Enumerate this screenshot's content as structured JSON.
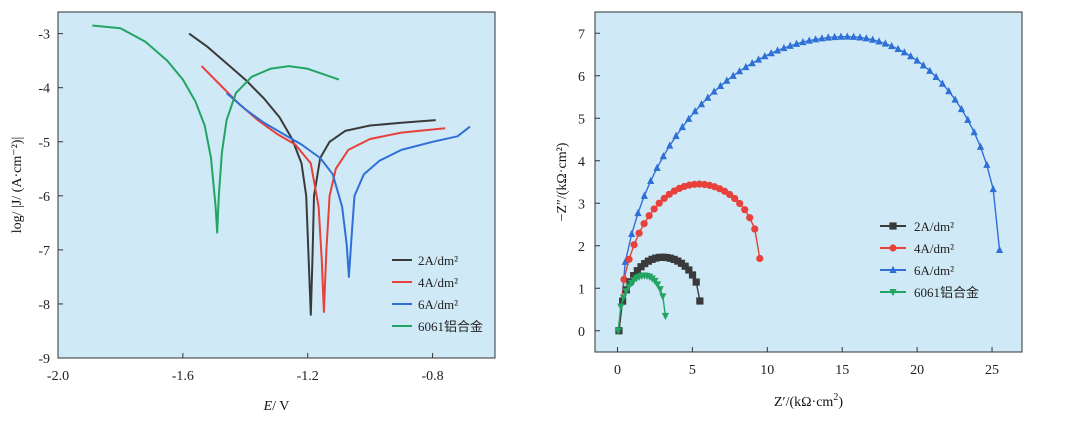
{
  "chart_data": [
    {
      "type": "line",
      "xlabel": "E/ V",
      "xlabel_italic": "E",
      "xlabel_unit": "/ V",
      "ylabel": "log/ |J/ (A·cm⁻²)|",
      "xlim": [
        -2.0,
        -0.6
      ],
      "ylim": [
        -9,
        -2.6
      ],
      "xticks": [
        -2.0,
        -1.6,
        -1.2,
        -0.8
      ],
      "xtick_labels": [
        "-2.0",
        "-1.6",
        "-1.2",
        "-0.8"
      ],
      "yticks": [
        -9,
        -8,
        -7,
        -6,
        -5,
        -4,
        -3
      ],
      "ytick_labels": [
        "-9",
        "-8",
        "-7",
        "-6",
        "-5",
        "-4",
        "-3"
      ],
      "legend_position": "lower-right",
      "background": "#cfe9f7",
      "series": [
        {
          "name": "2A/dm²",
          "color": "#3a3a3a",
          "x": [
            -1.58,
            -1.52,
            -1.46,
            -1.4,
            -1.34,
            -1.29,
            -1.25,
            -1.22,
            -1.205,
            -1.198,
            -1.19,
            -1.185,
            -1.18,
            -1.16,
            -1.13,
            -1.08,
            -1.0,
            -0.9,
            -0.79
          ],
          "y": [
            -3.0,
            -3.25,
            -3.55,
            -3.85,
            -4.2,
            -4.55,
            -4.95,
            -5.4,
            -6.0,
            -7.0,
            -8.2,
            -7.2,
            -6.0,
            -5.3,
            -5.0,
            -4.8,
            -4.7,
            -4.65,
            -4.6
          ]
        },
        {
          "name": "4A/dm²",
          "color": "#e8403a",
          "x": [
            -1.54,
            -1.48,
            -1.42,
            -1.36,
            -1.3,
            -1.24,
            -1.19,
            -1.165,
            -1.155,
            -1.148,
            -1.14,
            -1.13,
            -1.11,
            -1.07,
            -1.0,
            -0.9,
            -0.76
          ],
          "y": [
            -3.6,
            -3.95,
            -4.3,
            -4.6,
            -4.85,
            -5.05,
            -5.4,
            -6.2,
            -7.2,
            -8.15,
            -7.0,
            -6.0,
            -5.5,
            -5.15,
            -4.95,
            -4.83,
            -4.75
          ]
        },
        {
          "name": "6A/dm²",
          "color": "#2f6fd6",
          "x": [
            -1.46,
            -1.4,
            -1.34,
            -1.28,
            -1.22,
            -1.16,
            -1.12,
            -1.09,
            -1.075,
            -1.068,
            -1.06,
            -1.05,
            -1.02,
            -0.97,
            -0.9,
            -0.8,
            -0.72,
            -0.68
          ],
          "y": [
            -4.1,
            -4.4,
            -4.65,
            -4.85,
            -5.05,
            -5.3,
            -5.6,
            -6.2,
            -6.9,
            -7.5,
            -6.8,
            -6.0,
            -5.6,
            -5.35,
            -5.15,
            -5.0,
            -4.9,
            -4.72
          ]
        },
        {
          "name": "6061铝合金",
          "color": "#22a463",
          "x": [
            -1.89,
            -1.8,
            -1.72,
            -1.65,
            -1.6,
            -1.56,
            -1.53,
            -1.51,
            -1.495,
            -1.49,
            -1.485,
            -1.475,
            -1.46,
            -1.43,
            -1.38,
            -1.32,
            -1.26,
            -1.2,
            -1.15,
            -1.1
          ],
          "y": [
            -2.85,
            -2.9,
            -3.15,
            -3.5,
            -3.85,
            -4.25,
            -4.7,
            -5.3,
            -6.2,
            -6.68,
            -6.0,
            -5.2,
            -4.6,
            -4.1,
            -3.8,
            -3.65,
            -3.6,
            -3.65,
            -3.75,
            -3.85
          ]
        }
      ]
    },
    {
      "type": "scatter-line",
      "xlabel": "Z′/(kΩ·cm²)",
      "xlabel_base": "Z′/(kΩ·cm",
      "xlabel_sup": "2",
      "xlabel_close": ")",
      "ylabel": "−Z″/(kΩ·cm²)",
      "xlim": [
        -1.5,
        27
      ],
      "ylim": [
        -0.5,
        7.5
      ],
      "xticks": [
        0,
        5,
        10,
        15,
        20,
        25
      ],
      "xtick_labels": [
        "0",
        "5",
        "10",
        "15",
        "20",
        "25"
      ],
      "yticks": [
        0,
        1,
        2,
        3,
        4,
        5,
        6,
        7
      ],
      "ytick_labels": [
        "0",
        "1",
        "2",
        "3",
        "4",
        "5",
        "6",
        "7"
      ],
      "legend_position": "right",
      "background": "#cfe9f7",
      "series": [
        {
          "name": "2A/dm²",
          "color": "#3a3a3a",
          "marker": "square",
          "arc": {
            "x_start": 0.1,
            "x_end": 5.5,
            "peak_x": 3.0,
            "peak_y": 1.73,
            "end_y": 0.7,
            "points": 22
          }
        },
        {
          "name": "4A/dm²",
          "color": "#e8403a",
          "marker": "circle",
          "arc": {
            "x_start": 0.1,
            "x_end": 9.5,
            "peak_x": 5.4,
            "peak_y": 3.45,
            "end_y": 1.7,
            "points": 28
          }
        },
        {
          "name": "6A/dm²",
          "color": "#2f6fd6",
          "marker": "triangle-up",
          "arc": {
            "x_start": 0.1,
            "x_end": 25.5,
            "peak_x": 15.3,
            "peak_y": 6.92,
            "end_y": 1.9,
            "points": 60
          }
        },
        {
          "name": "6061铝合金",
          "color": "#22a463",
          "marker": "triangle-down",
          "arc": {
            "x_start": 0.05,
            "x_end": 3.2,
            "peak_x": 1.8,
            "peak_y": 1.3,
            "end_y": 0.35,
            "points": 18
          }
        }
      ]
    }
  ]
}
